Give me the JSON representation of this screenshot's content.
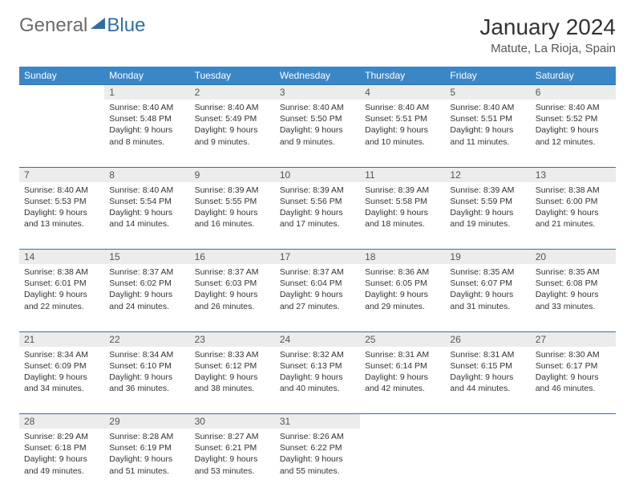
{
  "logo": {
    "part1": "General",
    "part2": "Blue"
  },
  "title": "January 2024",
  "location": "Matute, La Rioja, Spain",
  "colors": {
    "header_bg": "#3a87c8",
    "header_text": "#ffffff",
    "daynum_bg": "#ececec",
    "border": "#2f6fa8",
    "logo_gray": "#6b6b6b",
    "logo_blue": "#2f6fa8"
  },
  "weekdays": [
    "Sunday",
    "Monday",
    "Tuesday",
    "Wednesday",
    "Thursday",
    "Friday",
    "Saturday"
  ],
  "weeks": [
    {
      "nums": [
        "",
        "1",
        "2",
        "3",
        "4",
        "5",
        "6"
      ],
      "cells": [
        null,
        {
          "sunrise": "8:40 AM",
          "sunset": "5:48 PM",
          "daylight": "9 hours and 8 minutes."
        },
        {
          "sunrise": "8:40 AM",
          "sunset": "5:49 PM",
          "daylight": "9 hours and 9 minutes."
        },
        {
          "sunrise": "8:40 AM",
          "sunset": "5:50 PM",
          "daylight": "9 hours and 9 minutes."
        },
        {
          "sunrise": "8:40 AM",
          "sunset": "5:51 PM",
          "daylight": "9 hours and 10 minutes."
        },
        {
          "sunrise": "8:40 AM",
          "sunset": "5:51 PM",
          "daylight": "9 hours and 11 minutes."
        },
        {
          "sunrise": "8:40 AM",
          "sunset": "5:52 PM",
          "daylight": "9 hours and 12 minutes."
        }
      ]
    },
    {
      "nums": [
        "7",
        "8",
        "9",
        "10",
        "11",
        "12",
        "13"
      ],
      "cells": [
        {
          "sunrise": "8:40 AM",
          "sunset": "5:53 PM",
          "daylight": "9 hours and 13 minutes."
        },
        {
          "sunrise": "8:40 AM",
          "sunset": "5:54 PM",
          "daylight": "9 hours and 14 minutes."
        },
        {
          "sunrise": "8:39 AM",
          "sunset": "5:55 PM",
          "daylight": "9 hours and 16 minutes."
        },
        {
          "sunrise": "8:39 AM",
          "sunset": "5:56 PM",
          "daylight": "9 hours and 17 minutes."
        },
        {
          "sunrise": "8:39 AM",
          "sunset": "5:58 PM",
          "daylight": "9 hours and 18 minutes."
        },
        {
          "sunrise": "8:39 AM",
          "sunset": "5:59 PM",
          "daylight": "9 hours and 19 minutes."
        },
        {
          "sunrise": "8:38 AM",
          "sunset": "6:00 PM",
          "daylight": "9 hours and 21 minutes."
        }
      ]
    },
    {
      "nums": [
        "14",
        "15",
        "16",
        "17",
        "18",
        "19",
        "20"
      ],
      "cells": [
        {
          "sunrise": "8:38 AM",
          "sunset": "6:01 PM",
          "daylight": "9 hours and 22 minutes."
        },
        {
          "sunrise": "8:37 AM",
          "sunset": "6:02 PM",
          "daylight": "9 hours and 24 minutes."
        },
        {
          "sunrise": "8:37 AM",
          "sunset": "6:03 PM",
          "daylight": "9 hours and 26 minutes."
        },
        {
          "sunrise": "8:37 AM",
          "sunset": "6:04 PM",
          "daylight": "9 hours and 27 minutes."
        },
        {
          "sunrise": "8:36 AM",
          "sunset": "6:05 PM",
          "daylight": "9 hours and 29 minutes."
        },
        {
          "sunrise": "8:35 AM",
          "sunset": "6:07 PM",
          "daylight": "9 hours and 31 minutes."
        },
        {
          "sunrise": "8:35 AM",
          "sunset": "6:08 PM",
          "daylight": "9 hours and 33 minutes."
        }
      ]
    },
    {
      "nums": [
        "21",
        "22",
        "23",
        "24",
        "25",
        "26",
        "27"
      ],
      "cells": [
        {
          "sunrise": "8:34 AM",
          "sunset": "6:09 PM",
          "daylight": "9 hours and 34 minutes."
        },
        {
          "sunrise": "8:34 AM",
          "sunset": "6:10 PM",
          "daylight": "9 hours and 36 minutes."
        },
        {
          "sunrise": "8:33 AM",
          "sunset": "6:12 PM",
          "daylight": "9 hours and 38 minutes."
        },
        {
          "sunrise": "8:32 AM",
          "sunset": "6:13 PM",
          "daylight": "9 hours and 40 minutes."
        },
        {
          "sunrise": "8:31 AM",
          "sunset": "6:14 PM",
          "daylight": "9 hours and 42 minutes."
        },
        {
          "sunrise": "8:31 AM",
          "sunset": "6:15 PM",
          "daylight": "9 hours and 44 minutes."
        },
        {
          "sunrise": "8:30 AM",
          "sunset": "6:17 PM",
          "daylight": "9 hours and 46 minutes."
        }
      ]
    },
    {
      "nums": [
        "28",
        "29",
        "30",
        "31",
        "",
        "",
        ""
      ],
      "cells": [
        {
          "sunrise": "8:29 AM",
          "sunset": "6:18 PM",
          "daylight": "9 hours and 49 minutes."
        },
        {
          "sunrise": "8:28 AM",
          "sunset": "6:19 PM",
          "daylight": "9 hours and 51 minutes."
        },
        {
          "sunrise": "8:27 AM",
          "sunset": "6:21 PM",
          "daylight": "9 hours and 53 minutes."
        },
        {
          "sunrise": "8:26 AM",
          "sunset": "6:22 PM",
          "daylight": "9 hours and 55 minutes."
        },
        null,
        null,
        null
      ]
    }
  ],
  "labels": {
    "sunrise": "Sunrise:",
    "sunset": "Sunset:",
    "daylight": "Daylight:"
  }
}
